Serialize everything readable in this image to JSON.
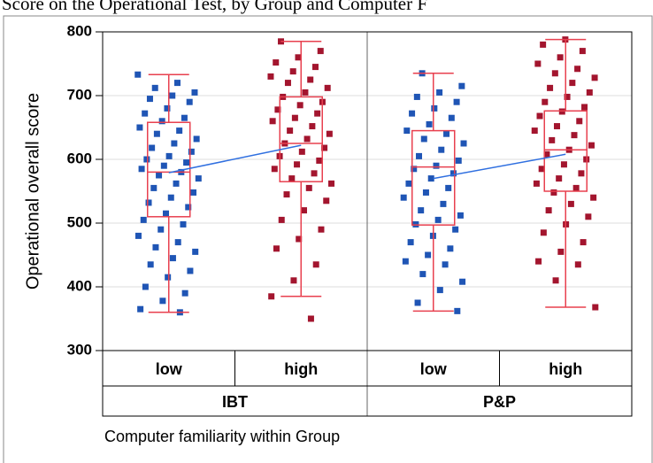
{
  "chart_data": {
    "type": "box",
    "title": "Score on the Operational Test, by Group and Computer F",
    "y_label": "Operational overall score",
    "x_label": "Computer familiarity within Group",
    "ylim": [
      300,
      800
    ],
    "yticks": [
      300,
      400,
      500,
      600,
      700,
      800
    ],
    "grid": true,
    "groups": [
      {
        "name": "IBT",
        "series": [
          {
            "name": "low",
            "color": "#1f55b5",
            "mean": 579,
            "box": {
              "whisker_low": 360,
              "q1": 510,
              "median": 580,
              "q3": 658,
              "whisker_high": 733
            },
            "values": [
              733,
              720,
              712,
              705,
              700,
              695,
              690,
              680,
              672,
              665,
              660,
              650,
              645,
              640,
              632,
              625,
              618,
              612,
              605,
              600,
              595,
              590,
              585,
              580,
              575,
              570,
              562,
              555,
              548,
              540,
              532,
              525,
              515,
              505,
              498,
              490,
              480,
              470,
              462,
              455,
              445,
              435,
              425,
              415,
              400,
              390,
              378,
              365,
              360
            ]
          },
          {
            "name": "high",
            "color": "#a3152e",
            "mean": 622,
            "box": {
              "whisker_low": 385,
              "q1": 565,
              "median": 625,
              "q3": 698,
              "whisker_high": 785
            },
            "values": [
              785,
              770,
              760,
              752,
              745,
              738,
              730,
              725,
              720,
              712,
              705,
              698,
              690,
              685,
              678,
              672,
              665,
              660,
              652,
              645,
              640,
              632,
              625,
              618,
              612,
              605,
              598,
              592,
              585,
              578,
              570,
              562,
              555,
              545,
              535,
              520,
              505,
              490,
              475,
              460,
              435,
              410,
              385,
              350
            ]
          }
        ]
      },
      {
        "name": "P&P",
        "series": [
          {
            "name": "low",
            "color": "#1f55b5",
            "mean": 570,
            "box": {
              "whisker_low": 362,
              "q1": 497,
              "median": 588,
              "q3": 645,
              "whisker_high": 735
            },
            "values": [
              735,
              715,
              705,
              698,
              690,
              680,
              672,
              665,
              655,
              645,
              640,
              632,
              625,
              615,
              605,
              598,
              590,
              585,
              578,
              570,
              562,
              555,
              548,
              540,
              530,
              520,
              512,
              505,
              498,
              490,
              480,
              470,
              460,
              450,
              440,
              435,
              420,
              408,
              395,
              375,
              362
            ]
          },
          {
            "name": "high",
            "color": "#a3152e",
            "mean": 608,
            "box": {
              "whisker_low": 368,
              "q1": 550,
              "median": 615,
              "q3": 676,
              "whisker_high": 788
            },
            "values": [
              788,
              780,
              770,
              760,
              750,
              742,
              735,
              728,
              720,
              712,
              705,
              698,
              690,
              682,
              675,
              668,
              660,
              652,
              645,
              638,
              630,
              622,
              615,
              608,
              600,
              592,
              585,
              578,
              570,
              562,
              555,
              548,
              540,
              530,
              520,
              510,
              498,
              485,
              470,
              455,
              440,
              435,
              410,
              368
            ]
          }
        ]
      }
    ]
  }
}
